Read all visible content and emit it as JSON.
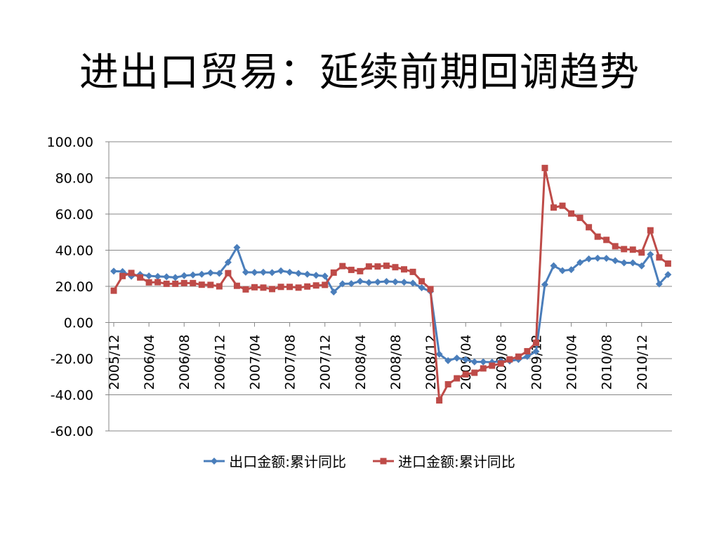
{
  "title": "进出口贸易：延续前期回调趋势",
  "chart_data": {
    "type": "line",
    "ylim": [
      -60,
      100
    ],
    "yticks": [
      "100.00",
      "80.00",
      "60.00",
      "40.00",
      "20.00",
      "0.00",
      "-20.00",
      "-40.00",
      "-60.00"
    ],
    "ytick_values": [
      100,
      80,
      60,
      40,
      20,
      0,
      -20,
      -40,
      -60
    ],
    "grid": true,
    "legend_position": "bottom",
    "x": [
      "2005/12",
      "2006/01",
      "2006/02",
      "2006/03",
      "2006/04",
      "2006/05",
      "2006/06",
      "2006/07",
      "2006/08",
      "2006/09",
      "2006/10",
      "2006/11",
      "2006/12",
      "2007/01",
      "2007/02",
      "2007/03",
      "2007/04",
      "2007/05",
      "2007/06",
      "2007/07",
      "2007/08",
      "2007/09",
      "2007/10",
      "2007/11",
      "2007/12",
      "2008/01",
      "2008/02",
      "2008/03",
      "2008/04",
      "2008/05",
      "2008/06",
      "2008/07",
      "2008/08",
      "2008/09",
      "2008/10",
      "2008/11",
      "2008/12",
      "2009/01",
      "2009/02",
      "2009/03",
      "2009/04",
      "2009/05",
      "2009/06",
      "2009/07",
      "2009/08",
      "2009/09",
      "2009/10",
      "2009/11",
      "2009/12",
      "2010/01",
      "2010/02",
      "2010/03",
      "2010/04",
      "2010/05",
      "2010/06",
      "2010/07",
      "2010/08",
      "2010/09",
      "2010/10",
      "2010/11",
      "2010/12",
      "2011/01",
      "2011/02",
      "2011/03"
    ],
    "xtick_labels": [
      "2005/12",
      "2006/04",
      "2006/08",
      "2006/12",
      "2007/04",
      "2007/08",
      "2007/12",
      "2008/04",
      "2008/08",
      "2008/12",
      "2009/04",
      "2009/08",
      "2009/12",
      "2010/04",
      "2010/08",
      "2010/12"
    ],
    "series": [
      {
        "name": "出口金额:累计同比",
        "color": "#4a7ebb",
        "marker": "diamond",
        "values": [
          28.4,
          28.2,
          25.6,
          26.6,
          25.8,
          25.5,
          25.3,
          24.9,
          25.9,
          26.3,
          26.7,
          27.5,
          27.2,
          33.3,
          41.5,
          27.8,
          27.7,
          27.8,
          27.6,
          28.6,
          27.8,
          27.2,
          26.7,
          26.1,
          25.7,
          16.9,
          21.4,
          21.5,
          22.8,
          22.1,
          22.4,
          22.7,
          22.5,
          22.3,
          21.8,
          19.2,
          17.2,
          -17.5,
          -21.1,
          -19.7,
          -20.5,
          -21.8,
          -21.8,
          -22.0,
          -21.3,
          -21.3,
          -20.5,
          -18.8,
          -16.0,
          21.0,
          31.4,
          28.7,
          29.2,
          33.2,
          35.2,
          35.6,
          35.5,
          34.2,
          33.0,
          33.0,
          31.3,
          37.7,
          21.3,
          26.5
        ]
      },
      {
        "name": "进口金额:累计同比",
        "color": "#be4b48",
        "marker": "square",
        "values": [
          17.6,
          25.7,
          27.4,
          24.9,
          22.2,
          22.3,
          21.4,
          21.4,
          21.8,
          21.8,
          20.9,
          20.8,
          20.0,
          27.3,
          20.3,
          18.3,
          19.5,
          19.3,
          18.5,
          19.7,
          19.7,
          19.3,
          19.9,
          20.5,
          20.8,
          27.6,
          31.2,
          29.1,
          28.4,
          31.0,
          31.0,
          31.4,
          30.6,
          29.4,
          28.0,
          22.8,
          18.5,
          -43.1,
          -34.2,
          -30.9,
          -28.7,
          -27.8,
          -25.4,
          -23.9,
          -22.7,
          -20.4,
          -18.9,
          -15.9,
          -11.2,
          85.5,
          63.6,
          64.6,
          60.3,
          57.9,
          52.7,
          47.5,
          45.7,
          42.2,
          40.6,
          40.3,
          38.7,
          51.0,
          36.0,
          32.6
        ]
      }
    ]
  }
}
